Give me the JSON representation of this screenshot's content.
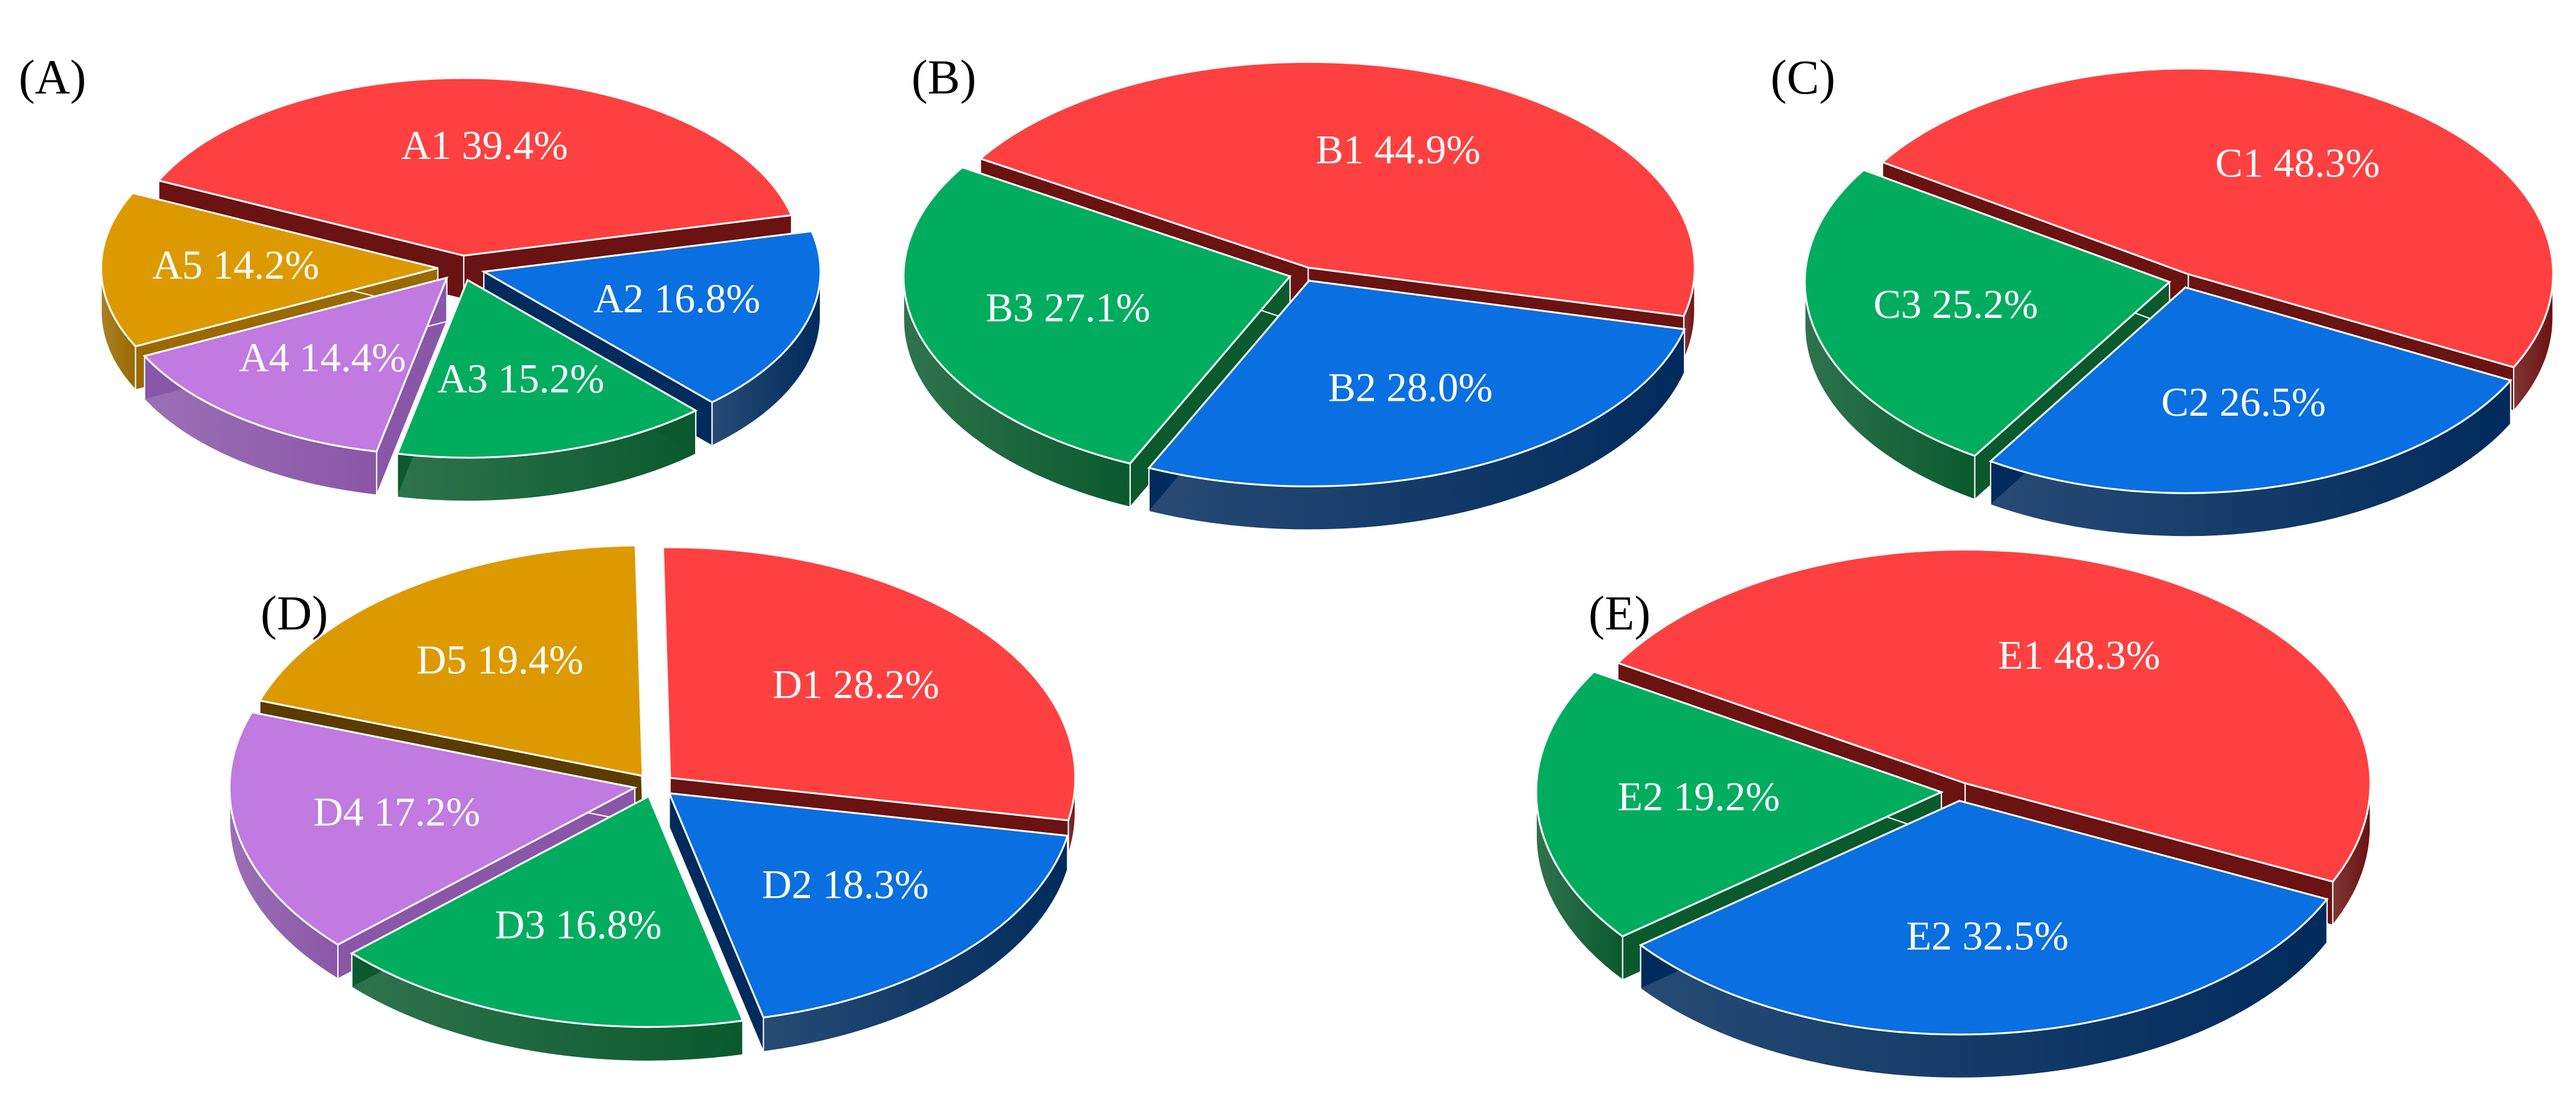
{
  "chart_data": [
    {
      "type": "pie",
      "panel": "(A)",
      "slices": [
        {
          "label": "A1 39.4%",
          "value": 39.4,
          "color": "#ff4040",
          "side": "#6b1212"
        },
        {
          "label": "A2 16.8%",
          "value": 16.8,
          "color": "#0a6fe0",
          "side": "#012b5c"
        },
        {
          "label": "A3 15.2%",
          "value": 15.2,
          "color": "#00ad5e",
          "side": "#0a5a2e"
        },
        {
          "label": "A4 14.4%",
          "value": 14.4,
          "color": "#c07ae0",
          "side": "#8a56a8"
        },
        {
          "label": "A5 14.2%",
          "value": 14.2,
          "color": "#dc9a00",
          "side": "#9a6a00"
        }
      ]
    },
    {
      "type": "pie",
      "panel": "(B)",
      "slices": [
        {
          "label": "B1 44.9%",
          "value": 44.9,
          "color": "#ff4040",
          "side": "#6b1212"
        },
        {
          "label": "B2 28.0%",
          "value": 28.0,
          "color": "#0a6fe0",
          "side": "#012b5c"
        },
        {
          "label": "B3 27.1%",
          "value": 27.1,
          "color": "#00ad5e",
          "side": "#0a5a2e"
        }
      ]
    },
    {
      "type": "pie",
      "panel": "(C)",
      "slices": [
        {
          "label": "C1 48.3%",
          "value": 48.3,
          "color": "#ff4040",
          "side": "#6b1212"
        },
        {
          "label": "C2 26.5%",
          "value": 26.5,
          "color": "#0a6fe0",
          "side": "#012b5c"
        },
        {
          "label": "C3 25.2%",
          "value": 25.2,
          "color": "#00ad5e",
          "side": "#0a5a2e"
        }
      ]
    },
    {
      "type": "pie",
      "panel": "(D)",
      "slices": [
        {
          "label": "D1 28.2%",
          "value": 28.2,
          "color": "#ff4040",
          "side": "#6b1212"
        },
        {
          "label": "D2 18.3%",
          "value": 18.3,
          "color": "#0a6fe0",
          "side": "#012b5c"
        },
        {
          "label": "D3 16.8%",
          "value": 16.8,
          "color": "#00ad5e",
          "side": "#0a5a2e"
        },
        {
          "label": "D4 17.2%",
          "value": 17.2,
          "color": "#c07ae0",
          "side": "#8a56a8"
        },
        {
          "label": "D5 19.4%",
          "value": 19.4,
          "color": "#dc9a00",
          "side": "#5a3c00"
        }
      ]
    },
    {
      "type": "pie",
      "panel": "(E)",
      "slices": [
        {
          "label": "E1 48.3%",
          "value": 48.3,
          "color": "#ff4040",
          "side": "#6b1212"
        },
        {
          "label": "E2 32.5%",
          "value": 32.5,
          "color": "#0a6fe0",
          "side": "#012b5c"
        },
        {
          "label": "E2 19.2%",
          "value": 19.2,
          "color": "#00ad5e",
          "side": "#0a5a2e"
        }
      ]
    }
  ]
}
